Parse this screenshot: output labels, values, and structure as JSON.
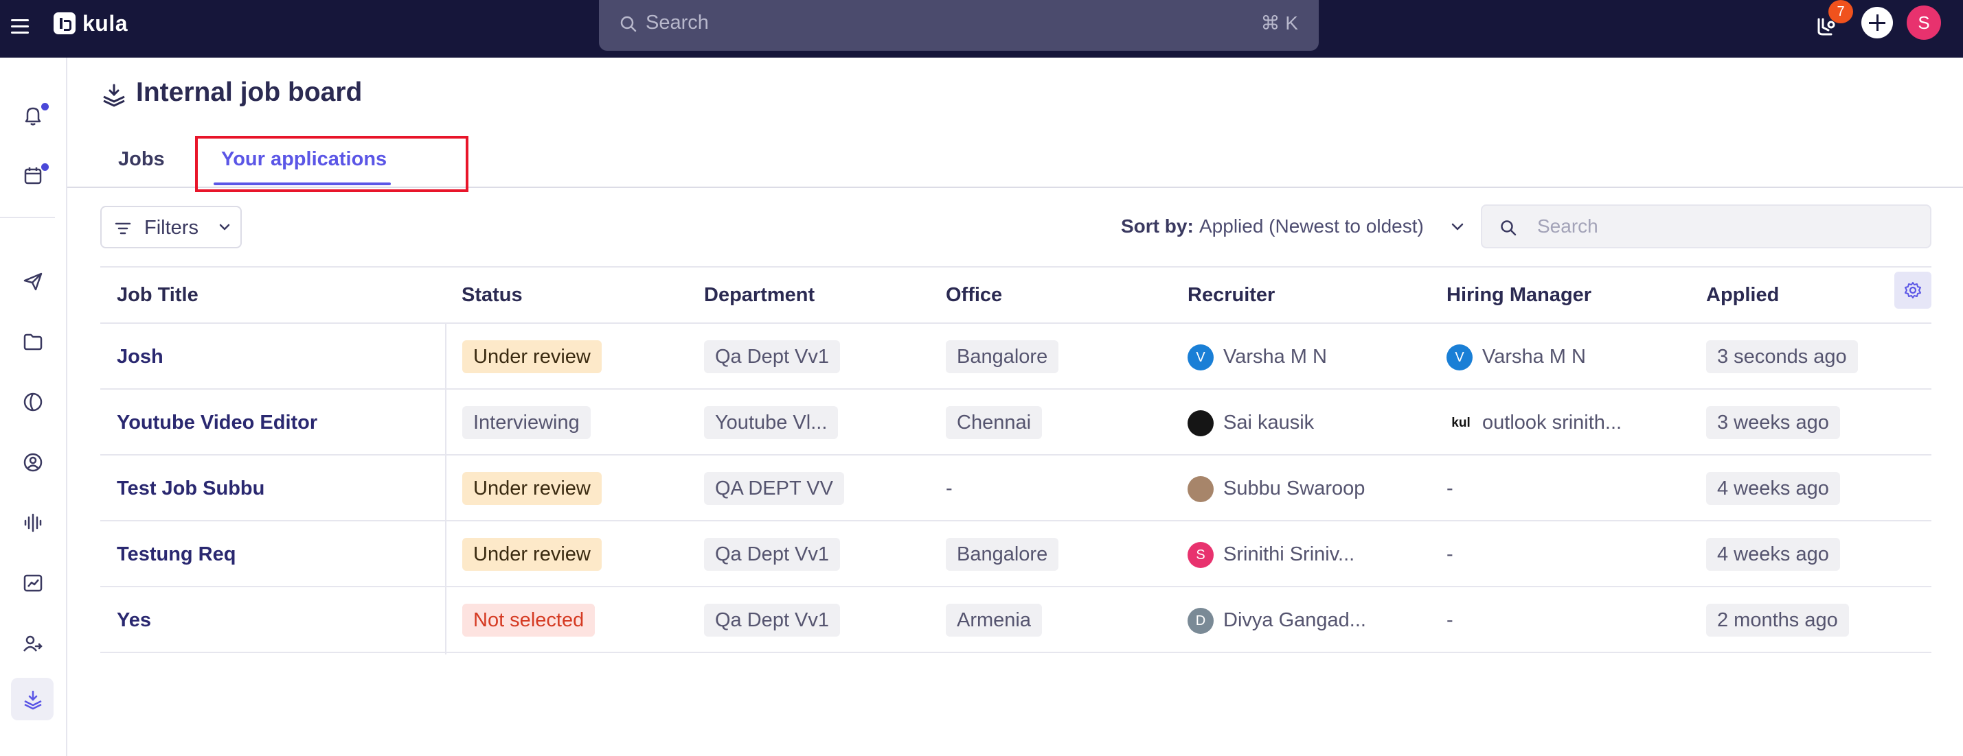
{
  "app": {
    "name": "kula"
  },
  "topbar": {
    "search_placeholder": "Search",
    "search_shortcut": "⌘ K",
    "notification_count": "7",
    "user_initial": "S"
  },
  "page": {
    "title": "Internal job board",
    "tabs": [
      {
        "label": "Jobs",
        "active": false
      },
      {
        "label": "Your applications",
        "active": true
      }
    ]
  },
  "toolbar": {
    "filters_label": "Filters",
    "sort_label": "Sort by:",
    "sort_value": "Applied (Newest to oldest)",
    "search_placeholder": "Search"
  },
  "table": {
    "columns": [
      "Job Title",
      "Status",
      "Department",
      "Office",
      "Recruiter",
      "Hiring Manager",
      "Applied"
    ],
    "rows": [
      {
        "job_title": "Josh",
        "status": "Under review",
        "department": "Qa Dept Vv1",
        "office": "Bangalore",
        "recruiter": "Varsha M N",
        "recruiter_initial": "V",
        "hiring_manager": "Varsha M N",
        "hiring_manager_initial": "V",
        "applied": "3 seconds ago"
      },
      {
        "job_title": "Youtube Video Editor",
        "status": "Interviewing",
        "department": "Youtube Vl...",
        "office": "Chennai",
        "recruiter": "Sai kausik",
        "recruiter_initial": "",
        "hiring_manager": "outlook srinith...",
        "hiring_manager_initial": "kul",
        "applied": "3 weeks ago"
      },
      {
        "job_title": "Test Job Subbu",
        "status": "Under review",
        "department": "QA DEPT VV",
        "office": "-",
        "recruiter": "Subbu Swaroop",
        "recruiter_initial": "",
        "hiring_manager": "-",
        "hiring_manager_initial": "",
        "applied": "4 weeks ago"
      },
      {
        "job_title": "Testung Req",
        "status": "Under review",
        "department": "Qa Dept Vv1",
        "office": "Bangalore",
        "recruiter": "Srinithi Sriniv...",
        "recruiter_initial": "S",
        "hiring_manager": "-",
        "hiring_manager_initial": "",
        "applied": "4 weeks ago"
      },
      {
        "job_title": "Yes",
        "status": "Not selected",
        "department": "Qa Dept Vv1",
        "office": "Armenia",
        "recruiter": "Divya Gangad...",
        "recruiter_initial": "D",
        "hiring_manager": "-",
        "hiring_manager_initial": "",
        "applied": "2 months ago"
      }
    ]
  },
  "colors": {
    "topbar": "#16163a",
    "accent": "#5b56e6",
    "highlight": "#e8152a",
    "status_review_bg": "#fde9c9",
    "status_rejected_text": "#d53a22"
  },
  "icons": {
    "sidebar": [
      "bell-icon",
      "calendar-icon",
      "send-icon",
      "folder-icon",
      "moon-icon",
      "user-circle-icon",
      "audio-wave-icon",
      "chart-icon",
      "users-icon",
      "job-board-icon"
    ]
  }
}
